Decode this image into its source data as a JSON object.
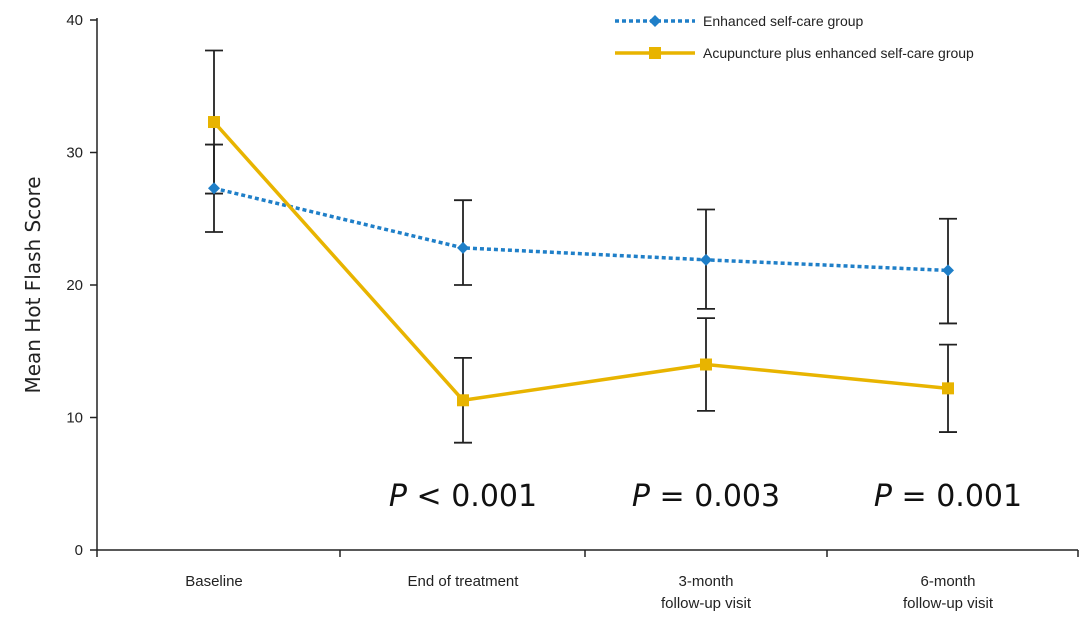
{
  "chart_data": {
    "type": "line",
    "title": "",
    "xlabel": "",
    "ylabel": "Mean Hot Flash Score",
    "ylim": [
      0,
      40
    ],
    "yticks": [
      0,
      10,
      20,
      30,
      40
    ],
    "grid": false,
    "legend_position": "top-right",
    "categories": [
      [
        "Baseline"
      ],
      [
        "End of treatment"
      ],
      [
        "3-month",
        "follow-up visit"
      ],
      [
        "6-month",
        "follow-up visit"
      ]
    ],
    "series": [
      {
        "name": "Enhanced self-care group",
        "color": "#1f7fc8",
        "line_style": "dotted",
        "marker": "diamond",
        "values": [
          27.3,
          22.8,
          21.9,
          21.1
        ],
        "error_low": [
          24.0,
          20.0,
          18.2,
          17.1
        ],
        "error_high": [
          30.6,
          26.4,
          25.7,
          25.0
        ]
      },
      {
        "name": "Acupuncture plus enhanced self-care group",
        "color": "#e8b400",
        "line_style": "solid",
        "marker": "square",
        "values": [
          32.3,
          11.3,
          14.0,
          12.2
        ],
        "error_low": [
          26.9,
          8.1,
          10.5,
          8.9
        ],
        "error_high": [
          37.7,
          14.5,
          17.5,
          15.5
        ]
      }
    ],
    "annotations": [
      {
        "category_index": 1,
        "italic": "P",
        "rest": " < 0.001"
      },
      {
        "category_index": 2,
        "italic": "P",
        "rest": " = 0.003"
      },
      {
        "category_index": 3,
        "italic": "P",
        "rest": " = 0.001"
      }
    ]
  }
}
